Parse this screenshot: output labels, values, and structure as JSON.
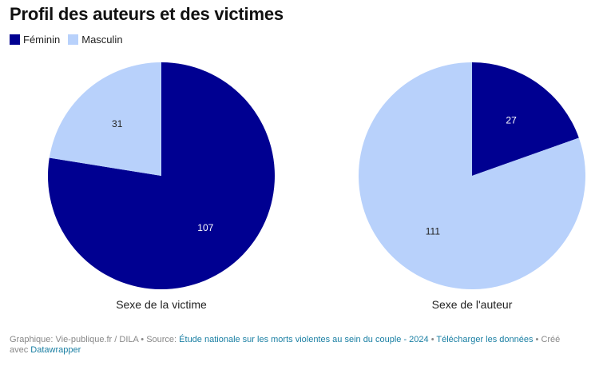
{
  "title": "Profil des auteurs et des victimes",
  "colors": {
    "feminin": "#000091",
    "masculin": "#b8d1fb"
  },
  "legend": [
    {
      "label": "Féminin",
      "color": "#000091"
    },
    {
      "label": "Masculin",
      "color": "#b8d1fb"
    }
  ],
  "chart_data": [
    {
      "type": "pie",
      "title": "Sexe de la victime",
      "slices": [
        {
          "label": "Féminin",
          "value": 107,
          "color": "#000091"
        },
        {
          "label": "Masculin",
          "value": 31,
          "color": "#b8d1fb"
        }
      ]
    },
    {
      "type": "pie",
      "title": "Sexe de l'auteur",
      "slices": [
        {
          "label": "Féminin",
          "value": 27,
          "color": "#000091"
        },
        {
          "label": "Masculin",
          "value": 111,
          "color": "#b8d1fb"
        }
      ]
    }
  ],
  "footer": {
    "prefix": "Graphique: Vie-publique.fr / DILA • Source: ",
    "source_link": "Étude nationale sur les morts violentes au sein du couple - 2024",
    "sep1": " • ",
    "download_link": "Télécharger les données",
    "sep2": " • Créé avec ",
    "tool_link": "Datawrapper"
  }
}
